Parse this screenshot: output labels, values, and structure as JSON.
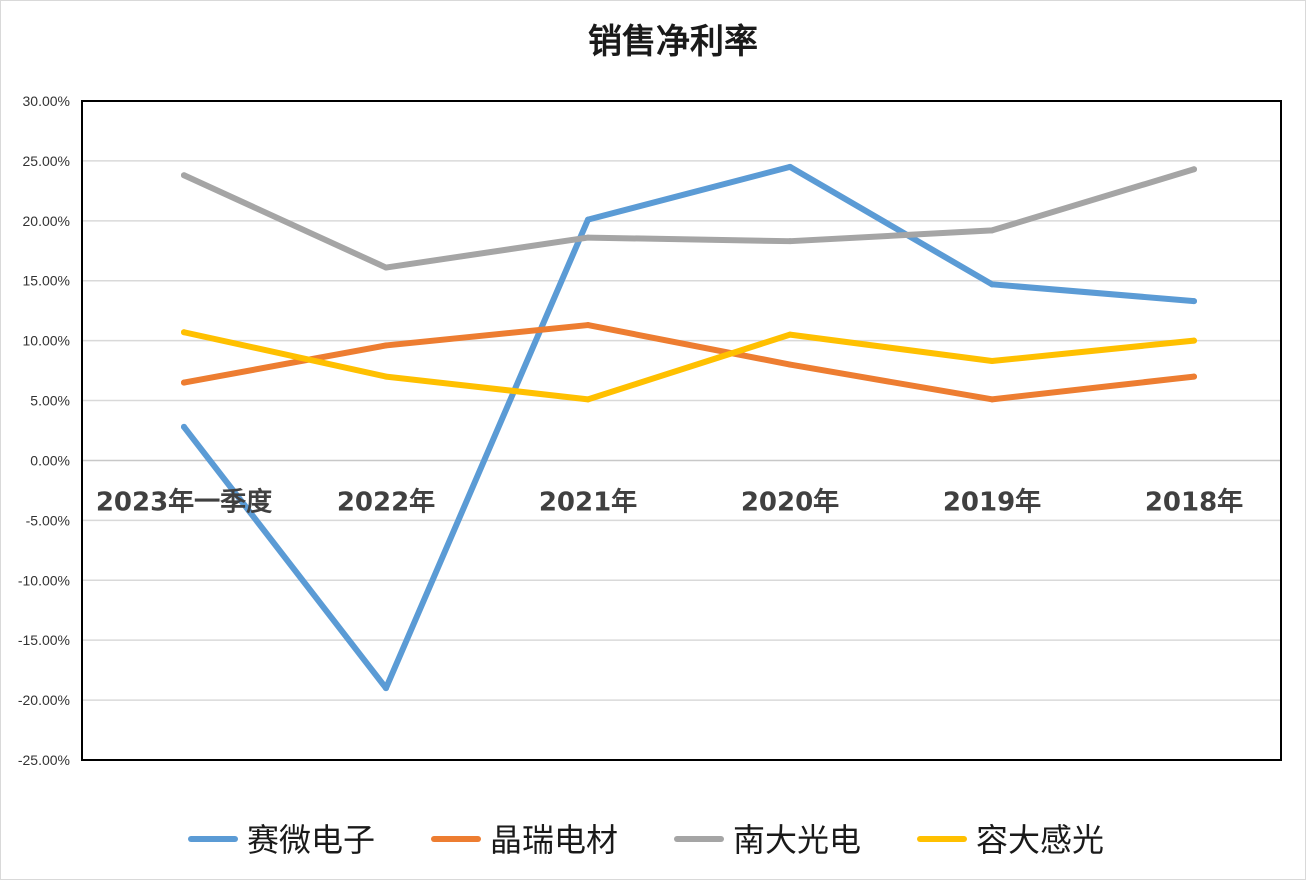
{
  "chart_data": {
    "type": "line",
    "title": "销售净利率",
    "categories": [
      "2023年一季度",
      "2022年",
      "2021年",
      "2020年",
      "2019年",
      "2018年"
    ],
    "ylim": [
      -0.25,
      0.3
    ],
    "yticks": [
      0.3,
      0.25,
      0.2,
      0.15,
      0.1,
      0.05,
      0.0,
      -0.05,
      -0.1,
      -0.15,
      -0.2,
      -0.25
    ],
    "ytick_labels": [
      "30.00%",
      "25.00%",
      "20.00%",
      "15.00%",
      "10.00%",
      "5.00%",
      "0.00%",
      "-5.00%",
      "-10.00%",
      "-15.00%",
      "-20.00%",
      "-25.00%"
    ],
    "grid": true,
    "legend_position": "bottom",
    "series": [
      {
        "name": "赛微电子",
        "color": "#5b9bd5",
        "values": [
          0.028,
          -0.19,
          0.201,
          0.245,
          0.147,
          0.133
        ]
      },
      {
        "name": "晶瑞电材",
        "color": "#ed7d31",
        "values": [
          0.065,
          0.096,
          0.113,
          0.08,
          0.051,
          0.07
        ]
      },
      {
        "name": "南大光电",
        "color": "#a5a5a5",
        "values": [
          0.238,
          0.161,
          0.186,
          0.183,
          0.192,
          0.243
        ]
      },
      {
        "name": "容大感光",
        "color": "#ffc000",
        "values": [
          0.107,
          0.07,
          0.051,
          0.105,
          0.083,
          0.1
        ]
      }
    ]
  }
}
